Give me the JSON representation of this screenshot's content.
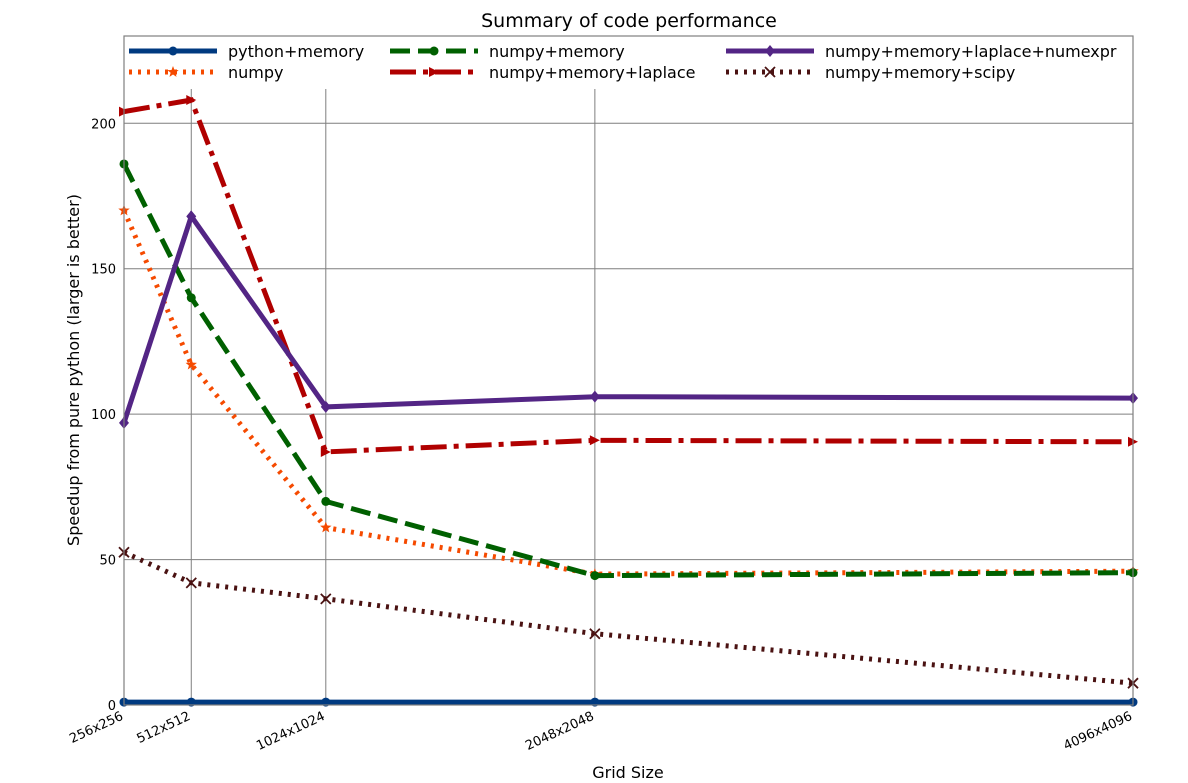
{
  "chart_data": {
    "type": "line",
    "title": "Summary of code performance",
    "xlabel": "Grid Size",
    "ylabel": "Speedup from pure python (larger is better)",
    "categories": [
      "256x256",
      "512x512",
      "1024x1024",
      "2048x2048",
      "4096x4096"
    ],
    "x": [
      256,
      512,
      1024,
      2048,
      4096
    ],
    "yticks": [
      0,
      50,
      100,
      150,
      200
    ],
    "ylim": [
      0,
      230
    ],
    "grid": true,
    "legend_position": "top",
    "series": [
      {
        "name": "python+memory",
        "color": "#003a80",
        "dash": "solid",
        "marker": "circle",
        "values": [
          1,
          1,
          1,
          1,
          1
        ]
      },
      {
        "name": "numpy",
        "color": "#f54a00",
        "dash": "dotted",
        "marker": "star",
        "values": [
          170,
          117,
          61,
          45,
          46
        ]
      },
      {
        "name": "numpy+memory",
        "color": "#006000",
        "dash": "dashed",
        "marker": "circle",
        "values": [
          186,
          140,
          70,
          44.5,
          45.5
        ]
      },
      {
        "name": "numpy+memory+laplace",
        "color": "#b00000",
        "dash": "dashdot",
        "marker": "triangle-right",
        "values": [
          204,
          208,
          87,
          91,
          90.5
        ]
      },
      {
        "name": "numpy+memory+laplace+numexpr",
        "color": "#532585",
        "dash": "solid",
        "marker": "diamond",
        "values": [
          97,
          168,
          102.5,
          106,
          105.5
        ]
      },
      {
        "name": "numpy+memory+scipy",
        "color": "#4a1212",
        "dash": "dotted",
        "marker": "x",
        "values": [
          52.5,
          42,
          36.5,
          24.5,
          7.5
        ]
      }
    ]
  }
}
